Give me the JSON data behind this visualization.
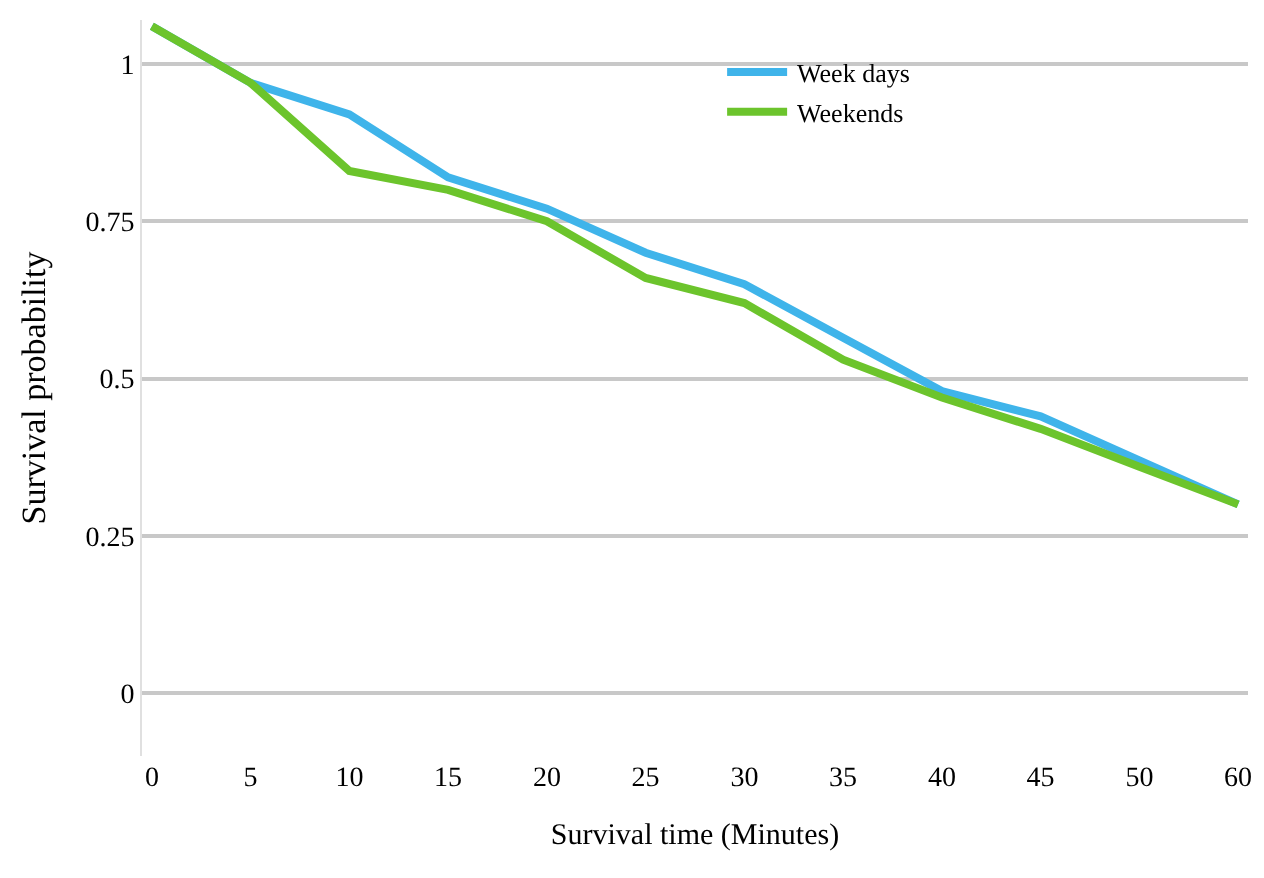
{
  "chart_data": {
    "type": "line",
    "xlabel": "Survival time (Minutes)",
    "ylabel": "Survival probability",
    "categories": [
      "0",
      "5",
      "10",
      "15",
      "20",
      "25",
      "30",
      "35",
      "40",
      "45",
      "50",
      "60"
    ],
    "ylim": [
      -0.1,
      1.07
    ],
    "yticks": [
      0,
      0.25,
      0.5,
      0.75,
      1
    ],
    "grid": "y",
    "legend": "top right",
    "marker": "none",
    "line_style": "solid",
    "series": [
      {
        "name": "Week days",
        "color": "#3fb4ea",
        "values": [
          1.06,
          0.97,
          0.92,
          0.82,
          0.77,
          0.7,
          0.65,
          0.565,
          0.48,
          0.44,
          0.37,
          0.3
        ]
      },
      {
        "name": "Weekends",
        "color": "#6cc42c",
        "values": [
          1.06,
          0.97,
          0.83,
          0.8,
          0.75,
          0.66,
          0.62,
          0.53,
          0.47,
          0.42,
          0.36,
          0.3
        ]
      }
    ]
  }
}
